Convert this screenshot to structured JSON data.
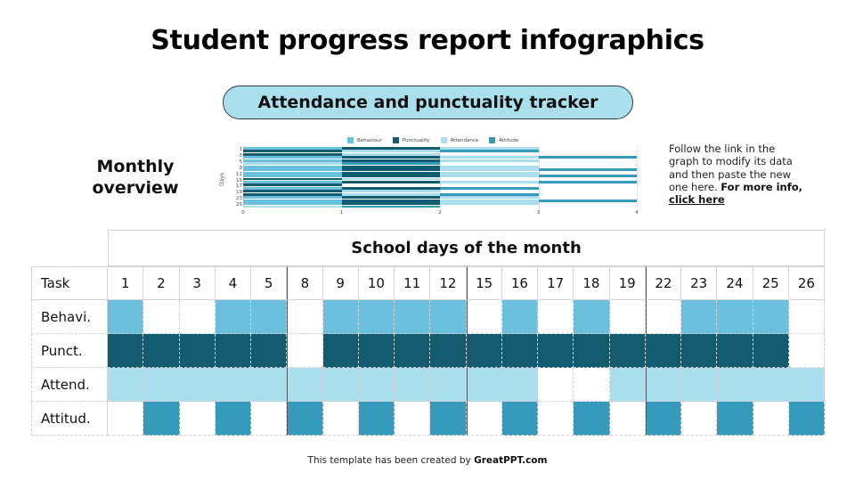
{
  "title": "Student progress report infographics",
  "subtitle_pill": "Attendance and punctuality tracker",
  "monthly_label": "Monthly overview",
  "note": {
    "text": "Follow the link in the graph to modify its data and then paste the new one here.",
    "bold": "For more info,",
    "link": "click here"
  },
  "table": {
    "header_title": "School days of the month",
    "task_label": "Task",
    "days": [
      "1",
      "2",
      "3",
      "4",
      "5",
      "8",
      "9",
      "10",
      "11",
      "12",
      "15",
      "16",
      "17",
      "18",
      "19",
      "22",
      "23",
      "24",
      "25",
      "26"
    ],
    "week_starts": [
      5,
      10,
      15
    ],
    "rows": [
      {
        "label": "Behavi.",
        "series": "Behaviour",
        "color": "#6bc0de",
        "values": [
          1,
          0,
          0,
          1,
          1,
          0,
          1,
          1,
          1,
          1,
          0,
          1,
          0,
          1,
          0,
          0,
          1,
          1,
          1,
          0
        ]
      },
      {
        "label": "Punct.",
        "series": "Punctuality",
        "color": "#135b6e",
        "values": [
          1,
          1,
          1,
          1,
          1,
          0,
          1,
          1,
          1,
          1,
          1,
          1,
          1,
          1,
          1,
          1,
          1,
          1,
          1,
          0
        ]
      },
      {
        "label": "Attend.",
        "series": "Attendance",
        "color": "#abdeed",
        "values": [
          1,
          1,
          1,
          1,
          1,
          1,
          1,
          1,
          1,
          1,
          1,
          1,
          0,
          0,
          1,
          1,
          1,
          1,
          1,
          1
        ]
      },
      {
        "label": "Attitud.",
        "series": "Attitude",
        "color": "#369abd",
        "values": [
          0,
          1,
          0,
          1,
          0,
          1,
          0,
          1,
          0,
          1,
          0,
          1,
          0,
          1,
          0,
          1,
          0,
          1,
          0,
          1
        ]
      }
    ]
  },
  "chart_data": {
    "type": "bar",
    "orientation": "horizontal",
    "stacked": true,
    "title": "",
    "xlabel": "",
    "ylabel": "Days",
    "xlim": [
      0,
      4
    ],
    "x_ticks": [
      "0",
      "1",
      "2",
      "3",
      "4"
    ],
    "y_tick_labels": [
      "1",
      "3",
      "5",
      "9",
      "11",
      "15",
      "17",
      "19",
      "23",
      "25"
    ],
    "categories": [
      "1",
      "2",
      "3",
      "4",
      "5",
      "8",
      "9",
      "10",
      "11",
      "12",
      "15",
      "16",
      "17",
      "18",
      "19",
      "22",
      "23",
      "24",
      "25",
      "26"
    ],
    "legend": [
      "Behaviour",
      "Punctuality",
      "Attendance",
      "Attitude"
    ],
    "legend_position": "top",
    "grid": true,
    "series": [
      {
        "name": "Behaviour",
        "color": "#6bc0de",
        "values": [
          1,
          0,
          0,
          1,
          1,
          0,
          1,
          1,
          1,
          1,
          0,
          1,
          0,
          1,
          0,
          0,
          1,
          1,
          1,
          0
        ]
      },
      {
        "name": "Punctuality",
        "color": "#135b6e",
        "values": [
          1,
          1,
          1,
          1,
          1,
          0,
          1,
          1,
          1,
          1,
          1,
          1,
          1,
          1,
          1,
          1,
          1,
          1,
          1,
          0
        ]
      },
      {
        "name": "Attendance",
        "color": "#abdeed",
        "values": [
          1,
          1,
          1,
          1,
          1,
          1,
          1,
          1,
          1,
          1,
          1,
          1,
          0,
          0,
          1,
          1,
          1,
          1,
          1,
          1
        ]
      },
      {
        "name": "Attitude",
        "color": "#369abd",
        "values": [
          0,
          1,
          0,
          1,
          0,
          1,
          0,
          1,
          0,
          1,
          0,
          1,
          0,
          1,
          0,
          1,
          0,
          1,
          0,
          1
        ]
      }
    ]
  },
  "footer": {
    "text": "This template has been created by",
    "brand": "GreatPPT.com"
  }
}
